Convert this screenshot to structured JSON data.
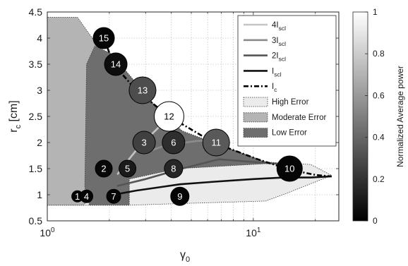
{
  "chart_data": {
    "type": "scatter",
    "xlabel": "γ",
    "xlabel_sub": "0",
    "ylabel": "r",
    "ylabel_sub": "c",
    "ylabel_unit": "[cm]",
    "xscale": "log",
    "xlim": [
      1,
      26
    ],
    "ylim": [
      0.5,
      4.5
    ],
    "xticks": [
      1,
      10
    ],
    "xtick_labels": [
      {
        "base": "10",
        "exp": "0"
      },
      {
        "base": "10",
        "exp": "1"
      }
    ],
    "yticks": [
      0.5,
      1,
      1.5,
      2,
      2.5,
      3,
      3.5,
      4,
      4.5
    ],
    "ytick_labels": [
      "0.5",
      "1",
      "1.5",
      "2",
      "2.5",
      "3",
      "3.5",
      "4",
      "4.5"
    ],
    "grid": true,
    "legend_position": "top-right",
    "legend": [
      {
        "id": "4iscl",
        "main": "4I",
        "sub": "scl",
        "style": "line",
        "color": "#c4c4c4"
      },
      {
        "id": "3iscl",
        "main": "3I",
        "sub": "scl",
        "style": "line",
        "color": "#8c8c8c"
      },
      {
        "id": "2iscl",
        "main": "2I",
        "sub": "scl",
        "style": "line",
        "color": "#555555"
      },
      {
        "id": "iscl",
        "main": "I",
        "sub": "scl",
        "style": "line",
        "color": "#111111"
      },
      {
        "id": "ic",
        "main": "I",
        "sub": "c",
        "style": "dashdot",
        "color": "#000000"
      },
      {
        "id": "high",
        "main": "High Error",
        "sub": "",
        "style": "patch",
        "color": "#ebebeb"
      },
      {
        "id": "moderate",
        "main": "Moderate Error",
        "sub": "",
        "style": "patch",
        "color": "#b4b4b4"
      },
      {
        "id": "low",
        "main": "Low Error",
        "sub": "",
        "style": "patch",
        "color": "#6e6e6e"
      }
    ],
    "regions": [
      {
        "name": "High Error",
        "color": "#ebebeb",
        "polygon": [
          [
            1,
            0.8
          ],
          [
            1.08,
            1.4
          ],
          [
            1.6,
            1.35
          ],
          [
            4.3,
            1.5
          ],
          [
            9,
            1.65
          ],
          [
            19,
            1.58
          ],
          [
            24,
            1.37
          ],
          [
            15,
            1.05
          ],
          [
            11.5,
            0.88
          ],
          [
            4.3,
            0.83
          ],
          [
            2.5,
            0.8
          ]
        ]
      },
      {
        "name": "Moderate Error",
        "color": "#b4b4b4",
        "polygon": [
          [
            1,
            0.8
          ],
          [
            1,
            4.4
          ],
          [
            1.4,
            4.4
          ],
          [
            1.95,
            3.6
          ],
          [
            4.2,
            2.27
          ],
          [
            12,
            1.6
          ],
          [
            4.3,
            1.5
          ],
          [
            2.5,
            1.35
          ],
          [
            1.6,
            0.95
          ],
          [
            1.5,
            0.8
          ]
        ]
      },
      {
        "name": "Low Error",
        "color": "#6e6e6e",
        "polygon": [
          [
            1.6,
            0.8
          ],
          [
            1.52,
            1.15
          ],
          [
            1.55,
            3.5
          ],
          [
            1.7,
            3.85
          ],
          [
            2.05,
            3.7
          ],
          [
            3.7,
            2.5
          ],
          [
            4.6,
            2.2
          ],
          [
            12,
            1.6
          ],
          [
            4.3,
            1.5
          ],
          [
            2.5,
            1.3
          ],
          [
            2.5,
            0.8
          ]
        ]
      }
    ],
    "series": [
      {
        "name": "4I_scl",
        "style": "line",
        "color": "#c4c4c4",
        "x": [
          2.2,
          2.4,
          2.7,
          3.1,
          3.6,
          3.9
        ],
        "y": [
          1.4,
          1.6,
          1.85,
          2.1,
          2.35,
          2.5
        ]
      },
      {
        "name": "3I_scl",
        "style": "line",
        "color": "#8c8c8c",
        "x": [
          3.2,
          3.6,
          4.3,
          5.3,
          6.6
        ],
        "y": [
          1.85,
          1.92,
          1.98,
          2.03,
          2.05
        ]
      },
      {
        "name": "2I_scl",
        "style": "line",
        "color": "#555555",
        "x": [
          2.2,
          3.0,
          4.5,
          6.8,
          10.5,
          14.5
        ],
        "y": [
          1.17,
          1.3,
          1.5,
          1.68,
          1.62,
          1.58
        ]
      },
      {
        "name": "I_scl",
        "style": "line",
        "color": "#111111",
        "x": [
          2.1,
          2.7,
          3.6,
          4.4,
          6.5,
          10,
          14,
          19,
          23.5
        ],
        "y": [
          1.0,
          1.08,
          1.15,
          1.2,
          1.25,
          1.3,
          1.33,
          1.33,
          1.35
        ]
      },
      {
        "name": "I_c",
        "style": "dashdot",
        "color": "#000000",
        "x": [
          1.88,
          2.1,
          2.7,
          3.9,
          6.4,
          10.5,
          15,
          20,
          24
        ],
        "y": [
          4.0,
          3.5,
          3.0,
          2.5,
          2.0,
          1.68,
          1.48,
          1.38,
          1.35
        ]
      }
    ],
    "points": [
      {
        "label": "1",
        "x": 1.4,
        "y": 0.97,
        "r": 8,
        "power": 0.0
      },
      {
        "label": "4",
        "x": 1.55,
        "y": 0.97,
        "r": 9,
        "power": 0.02
      },
      {
        "label": "7",
        "x": 2.1,
        "y": 0.97,
        "r": 10,
        "power": 0.02
      },
      {
        "label": "9",
        "x": 4.4,
        "y": 0.97,
        "r": 13,
        "power": 0.02
      },
      {
        "label": "2",
        "x": 1.88,
        "y": 1.5,
        "r": 12,
        "power": 0.03
      },
      {
        "label": "5",
        "x": 2.45,
        "y": 1.5,
        "r": 12,
        "power": 0.1
      },
      {
        "label": "8",
        "x": 4.1,
        "y": 1.5,
        "r": 13,
        "power": 0.15
      },
      {
        "label": "10",
        "x": 15,
        "y": 1.5,
        "r": 18,
        "power": 0.02
      },
      {
        "label": "3",
        "x": 2.95,
        "y": 2.0,
        "r": 16,
        "power": 0.25
      },
      {
        "label": "6",
        "x": 4.1,
        "y": 2.0,
        "r": 16,
        "power": 0.18
      },
      {
        "label": "11",
        "x": 6.6,
        "y": 2.0,
        "r": 19,
        "power": 0.35
      },
      {
        "label": "12",
        "x": 3.9,
        "y": 2.5,
        "r": 21,
        "power": 1.0
      },
      {
        "label": "13",
        "x": 2.9,
        "y": 3.0,
        "r": 19,
        "power": 0.3
      },
      {
        "label": "14",
        "x": 2.15,
        "y": 3.5,
        "r": 16,
        "power": 0.05
      },
      {
        "label": "15",
        "x": 1.88,
        "y": 4.0,
        "r": 15,
        "power": 0.02
      }
    ],
    "colorbar": {
      "label": "Normalized Average power",
      "ticks": [
        0,
        0.2,
        0.4,
        0.6,
        0.8,
        1
      ],
      "tick_labels": [
        "0",
        "0.2",
        "0.4",
        "0.6",
        "0.8",
        "1"
      ],
      "range": [
        0,
        1
      ]
    }
  }
}
